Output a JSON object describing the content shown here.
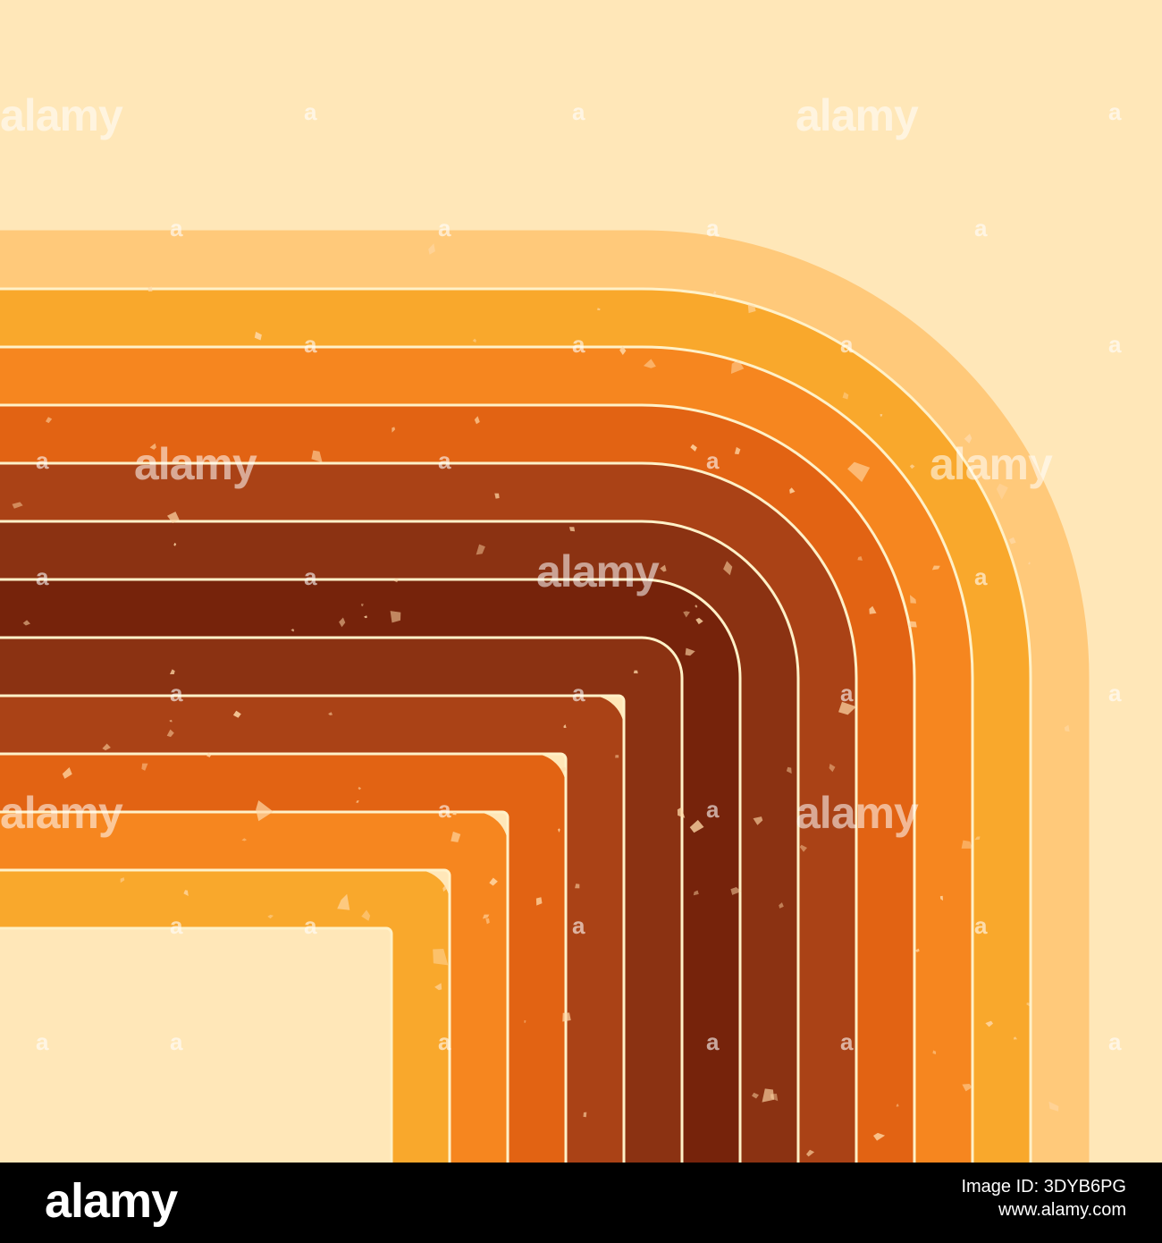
{
  "artwork": {
    "background_color": "#FFE7B8",
    "separator_color": "#FFF1C8",
    "band_colors": [
      "#FFC97A",
      "#F9A82C",
      "#F6861F",
      "#E26313",
      "#AA4216",
      "#8B3212",
      "#76230B"
    ],
    "speck_color": "#FFD9A8"
  },
  "watermark": {
    "text": "alamy",
    "small_mark": "a"
  },
  "footer": {
    "logo": "alamy",
    "image_id": "Image ID: 3DYB6PG",
    "site": "www.alamy.com"
  }
}
